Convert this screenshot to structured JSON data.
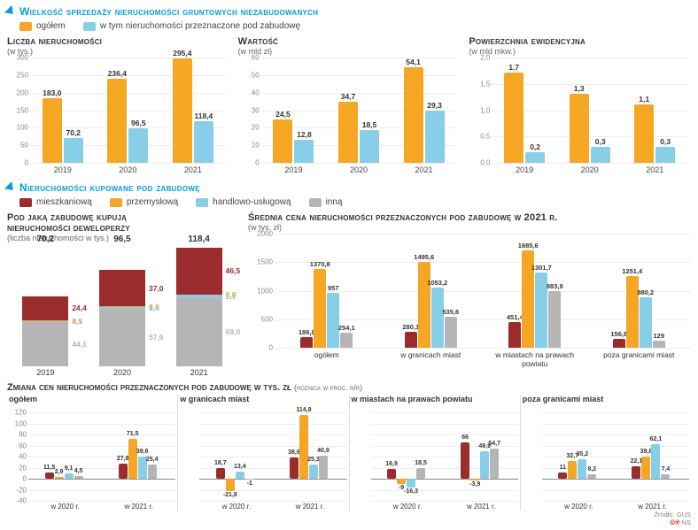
{
  "colors": {
    "blue_title": "#009fe3",
    "orange": "#f5a623",
    "lightblue": "#87cfe8",
    "red": "#9c2b2b",
    "grey": "#b5b5b5",
    "grid": "#eeeeee"
  },
  "section1": {
    "title": "Wielkość sprzedaży nieruchomości gruntowych niezabudowanych",
    "legend": [
      {
        "label": "ogółem",
        "color": "#f5a623"
      },
      {
        "label": "w tym nieruchomości przeznaczone pod zabudowę",
        "color": "#87cfe8"
      }
    ],
    "charts": [
      {
        "title": "Liczba nieruchomości",
        "sub": "(w tys.)",
        "ymax": 300,
        "ystep": 50,
        "cats": [
          "2019",
          "2020",
          "2021"
        ],
        "s1": [
          183.0,
          236.4,
          295.4
        ],
        "s2": [
          70.2,
          96.5,
          118.4
        ]
      },
      {
        "title": "Wartość",
        "sub": "(w mld zł)",
        "ymax": 60,
        "ystep": 10,
        "cats": [
          "2019",
          "2020",
          "2021"
        ],
        "s1": [
          24.5,
          34.7,
          54.1
        ],
        "s2": [
          12.8,
          18.5,
          29.3
        ]
      },
      {
        "title": "Powierzchnia ewidencyjna",
        "sub": "(w mld mkw.)",
        "ymax": 2.0,
        "ystep": 0.5,
        "decimals": 1,
        "cats": [
          "2019",
          "2020",
          "2021"
        ],
        "s1": [
          1.7,
          1.3,
          1.1
        ],
        "s2": [
          0.2,
          0.3,
          0.3
        ]
      }
    ]
  },
  "section2": {
    "title": "Nieruchomości kupowane pod zabudowę",
    "legend": [
      {
        "label": "mieszkaniową",
        "color": "#9c2b2b"
      },
      {
        "label": "przemysłową",
        "color": "#f5a623"
      },
      {
        "label": "handlowo-usługową",
        "color": "#87cfe8"
      },
      {
        "label": "inną",
        "color": "#b5b5b5"
      }
    ],
    "stacked": {
      "title1": "Pod jaką zabudowę kupują",
      "title2": "nieruchomości deweloperzy",
      "sub": "(liczba nieruchomości w tys.)",
      "cats": [
        "2019",
        "2020",
        "2021"
      ],
      "totals": [
        70.2,
        96.5,
        118.4
      ],
      "series": {
        "red": [
          24.4,
          37.0,
          46.5
        ],
        "orange": [
          0.5,
          0.6,
          0.8
        ],
        "blue": [
          1.1,
          1.4,
          2.1
        ],
        "grey": [
          44.1,
          57.6,
          69.0
        ]
      },
      "colors": {
        "red": "#9c2b2b",
        "orange": "#f5a623",
        "blue": "#87cfe8",
        "grey": "#b5b5b5"
      },
      "scale_max": 120
    },
    "avg": {
      "title": "Średnia cena nieruchomości przeznaczonych pod zabudowę w 2021 r.",
      "sub": "(w tys. zł)",
      "ymax": 2000,
      "ystep": 500,
      "cats": [
        "ogółem",
        "w granicach miast",
        "w miastach na prawach powiatu",
        "poza granicami miast"
      ],
      "series": {
        "red": [
          186.8,
          280.1,
          451.4,
          156.8
        ],
        "orange": [
          1370.8,
          1495.6,
          1685.6,
          1251.4
        ],
        "blue": [
          957,
          1053.2,
          1301.7,
          880.2
        ],
        "grey": [
          254.1,
          535.6,
          983.9,
          129
        ]
      },
      "colors": {
        "red": "#9c2b2b",
        "orange": "#f5a623",
        "blue": "#87cfe8",
        "grey": "#b5b5b5"
      }
    }
  },
  "section3": {
    "title": "Zmiana cen nieruchomości przeznaczonych pod zabudowę w tys. zł",
    "sub": "(różnica w proc. r/r)",
    "ymin": -40,
    "ymax": 120,
    "ystep": 20,
    "panels": [
      {
        "title": "ogółem",
        "years": [
          "w 2020 r.",
          "w 2021 r."
        ],
        "data": [
          [
            11.5,
            2.9,
            9.1,
            4.5
          ],
          [
            27.8,
            71.5,
            39.6,
            25.4
          ]
        ]
      },
      {
        "title": "w granicach miast",
        "years": [
          "w 2020 r.",
          "w 2021 r."
        ],
        "data": [
          [
            18.7,
            -21.8,
            13.4,
            -1
          ],
          [
            38.6,
            114.8,
            25.3,
            40.9
          ]
        ]
      },
      {
        "title": "w miastach na prawach powiatu",
        "years": [
          "w 2020 r.",
          "w 2021 r."
        ],
        "data": [
          [
            16.9,
            -9,
            -16.3,
            18.5
          ],
          [
            66,
            -3.9,
            49.9,
            54.7
          ]
        ]
      },
      {
        "title": "poza granicami miast",
        "years": [
          "w 2020 r.",
          "w 2021 r."
        ],
        "data": [
          [
            11,
            32.7,
            35.2,
            8.2
          ],
          [
            22.1,
            39.8,
            62.1,
            7.4
          ]
        ]
      }
    ],
    "colors": [
      "#9c2b2b",
      "#f5a623",
      "#87cfe8",
      "#b5b5b5"
    ],
    "source": "Źródło: GUS",
    "source2": "©℗ NS"
  }
}
